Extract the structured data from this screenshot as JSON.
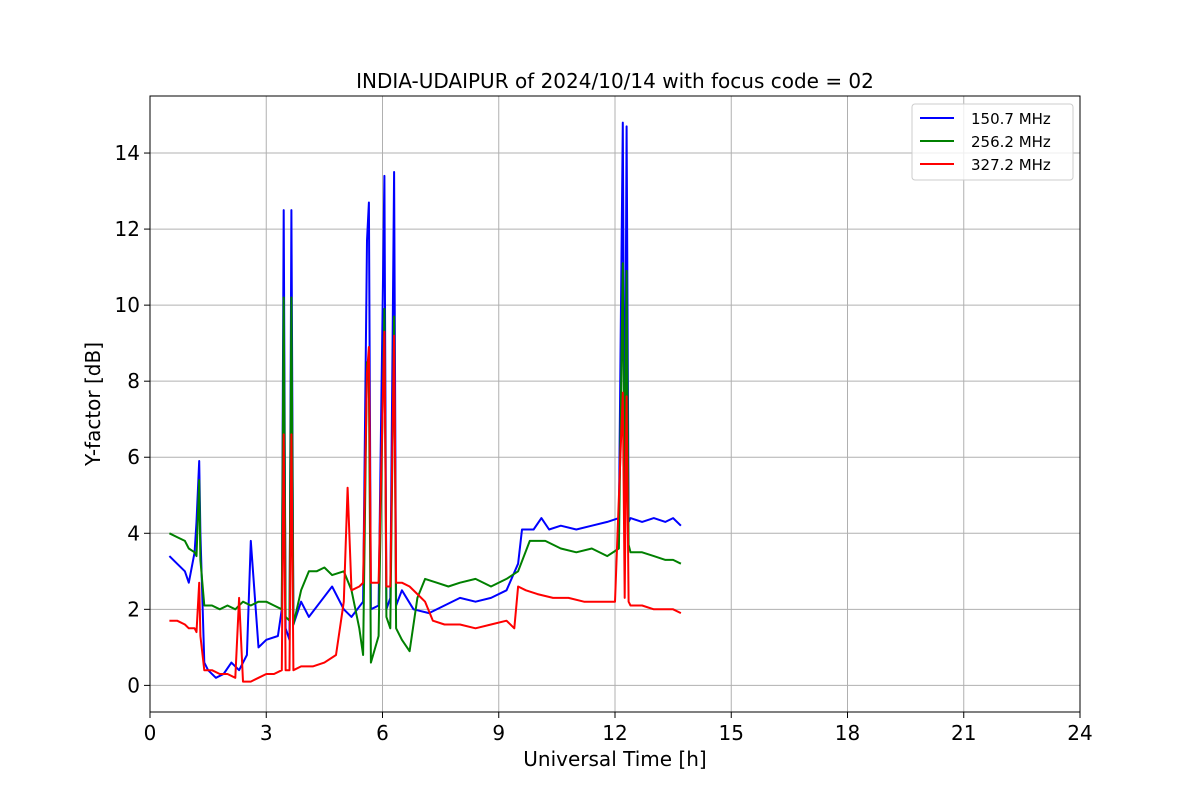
{
  "chart_data": {
    "type": "line",
    "title": "INDIA-UDAIPUR of 2024/10/14 with focus code = 02",
    "xlabel": "Universal Time [h]",
    "ylabel": "Y-factor [dB]",
    "xlim": [
      0,
      24
    ],
    "ylim": [
      -0.7,
      15.5
    ],
    "xticks": [
      0,
      3,
      6,
      9,
      12,
      15,
      18,
      21,
      24
    ],
    "yticks": [
      0,
      2,
      4,
      6,
      8,
      10,
      12,
      14
    ],
    "grid": true,
    "legend_position": "top-right",
    "series": [
      {
        "name": "150.7 MHz",
        "color": "#0000ff",
        "x": [
          0.5,
          0.7,
          0.9,
          1.0,
          1.15,
          1.2,
          1.27,
          1.3,
          1.4,
          1.5,
          1.7,
          1.9,
          2.1,
          2.3,
          2.5,
          2.6,
          2.8,
          3.0,
          3.3,
          3.4,
          3.45,
          3.5,
          3.6,
          3.65,
          3.7,
          3.9,
          4.1,
          4.4,
          4.7,
          5.0,
          5.2,
          5.5,
          5.6,
          5.65,
          5.7,
          5.9,
          6.05,
          6.1,
          6.2,
          6.3,
          6.35,
          6.5,
          6.8,
          7.2,
          7.6,
          8.0,
          8.4,
          8.8,
          9.2,
          9.5,
          9.6,
          9.9,
          10.1,
          10.3,
          10.6,
          11.0,
          11.4,
          11.8,
          12.1,
          12.2,
          12.25,
          12.3,
          12.35,
          12.4,
          12.7,
          13.0,
          13.3,
          13.5,
          13.7
        ],
        "y": [
          3.4,
          3.2,
          3.0,
          2.7,
          3.5,
          4.3,
          5.9,
          4.0,
          0.6,
          0.4,
          0.2,
          0.3,
          0.6,
          0.4,
          0.8,
          3.8,
          1.0,
          1.2,
          1.3,
          2.0,
          12.5,
          1.5,
          1.2,
          12.5,
          1.6,
          2.2,
          1.8,
          2.2,
          2.6,
          2.0,
          1.8,
          2.2,
          11.7,
          12.7,
          2.0,
          2.1,
          13.4,
          2.0,
          2.3,
          13.5,
          2.1,
          2.5,
          2.0,
          1.9,
          2.1,
          2.3,
          2.2,
          2.3,
          2.5,
          3.2,
          4.1,
          4.1,
          4.4,
          4.1,
          4.2,
          4.1,
          4.2,
          4.3,
          4.4,
          14.8,
          4.5,
          14.7,
          4.3,
          4.4,
          4.3,
          4.4,
          4.3,
          4.4,
          4.2
        ]
      },
      {
        "name": "256.2 MHz",
        "color": "#008000",
        "x": [
          0.5,
          0.7,
          0.9,
          1.0,
          1.15,
          1.2,
          1.27,
          1.3,
          1.4,
          1.6,
          1.8,
          2.0,
          2.2,
          2.4,
          2.6,
          2.8,
          3.0,
          3.2,
          3.4,
          3.45,
          3.5,
          3.6,
          3.65,
          3.7,
          3.9,
          4.1,
          4.3,
          4.5,
          4.7,
          5.0,
          5.2,
          5.4,
          5.5,
          5.6,
          5.65,
          5.7,
          5.9,
          6.05,
          6.1,
          6.2,
          6.3,
          6.35,
          6.5,
          6.7,
          6.9,
          7.1,
          7.4,
          7.7,
          8.0,
          8.4,
          8.8,
          9.2,
          9.5,
          9.8,
          10.2,
          10.6,
          11.0,
          11.4,
          11.8,
          12.1,
          12.2,
          12.25,
          12.3,
          12.35,
          12.4,
          12.7,
          13.0,
          13.3,
          13.5,
          13.7
        ],
        "y": [
          4.0,
          3.9,
          3.8,
          3.6,
          3.5,
          3.4,
          5.4,
          3.3,
          2.1,
          2.1,
          2.0,
          2.1,
          2.0,
          2.2,
          2.1,
          2.2,
          2.2,
          2.1,
          2.0,
          10.2,
          1.8,
          1.7,
          10.2,
          1.6,
          2.5,
          3.0,
          3.0,
          3.1,
          2.9,
          3.0,
          2.5,
          1.5,
          0.8,
          8.5,
          8.0,
          0.6,
          1.3,
          9.9,
          1.8,
          1.5,
          9.7,
          1.5,
          1.2,
          0.9,
          2.3,
          2.8,
          2.7,
          2.6,
          2.7,
          2.8,
          2.6,
          2.8,
          3.0,
          3.8,
          3.8,
          3.6,
          3.5,
          3.6,
          3.4,
          3.6,
          11.1,
          3.9,
          10.9,
          3.7,
          3.5,
          3.5,
          3.4,
          3.3,
          3.3,
          3.2
        ]
      },
      {
        "name": "327.2 MHz",
        "color": "#ff0000",
        "x": [
          0.5,
          0.7,
          0.9,
          1.0,
          1.15,
          1.2,
          1.27,
          1.3,
          1.4,
          1.6,
          1.8,
          2.0,
          2.2,
          2.3,
          2.4,
          2.6,
          2.8,
          3.0,
          3.2,
          3.4,
          3.45,
          3.5,
          3.6,
          3.65,
          3.7,
          3.9,
          4.2,
          4.5,
          4.8,
          5.0,
          5.1,
          5.2,
          5.4,
          5.5,
          5.6,
          5.65,
          5.7,
          5.9,
          6.05,
          6.1,
          6.2,
          6.3,
          6.35,
          6.5,
          6.7,
          6.9,
          7.1,
          7.3,
          7.6,
          8.0,
          8.4,
          8.8,
          9.2,
          9.4,
          9.5,
          9.7,
          10.0,
          10.4,
          10.8,
          11.2,
          11.6,
          12.0,
          12.2,
          12.25,
          12.3,
          12.35,
          12.4,
          12.7,
          13.0,
          13.3,
          13.5,
          13.7
        ],
        "y": [
          1.7,
          1.7,
          1.6,
          1.5,
          1.5,
          1.4,
          2.7,
          1.3,
          0.4,
          0.4,
          0.3,
          0.3,
          0.2,
          2.3,
          0.1,
          0.1,
          0.2,
          0.3,
          0.3,
          0.4,
          6.6,
          0.4,
          0.4,
          6.6,
          0.4,
          0.5,
          0.5,
          0.6,
          0.8,
          2.2,
          5.2,
          2.5,
          2.6,
          2.7,
          8.2,
          8.9,
          2.7,
          2.7,
          9.3,
          2.6,
          2.6,
          9.2,
          2.7,
          2.7,
          2.6,
          2.4,
          2.2,
          1.7,
          1.6,
          1.6,
          1.5,
          1.6,
          1.7,
          1.5,
          2.6,
          2.5,
          2.4,
          2.3,
          2.3,
          2.2,
          2.2,
          2.2,
          7.7,
          2.3,
          7.6,
          2.2,
          2.1,
          2.1,
          2.0,
          2.0,
          2.0,
          1.9
        ]
      }
    ]
  }
}
